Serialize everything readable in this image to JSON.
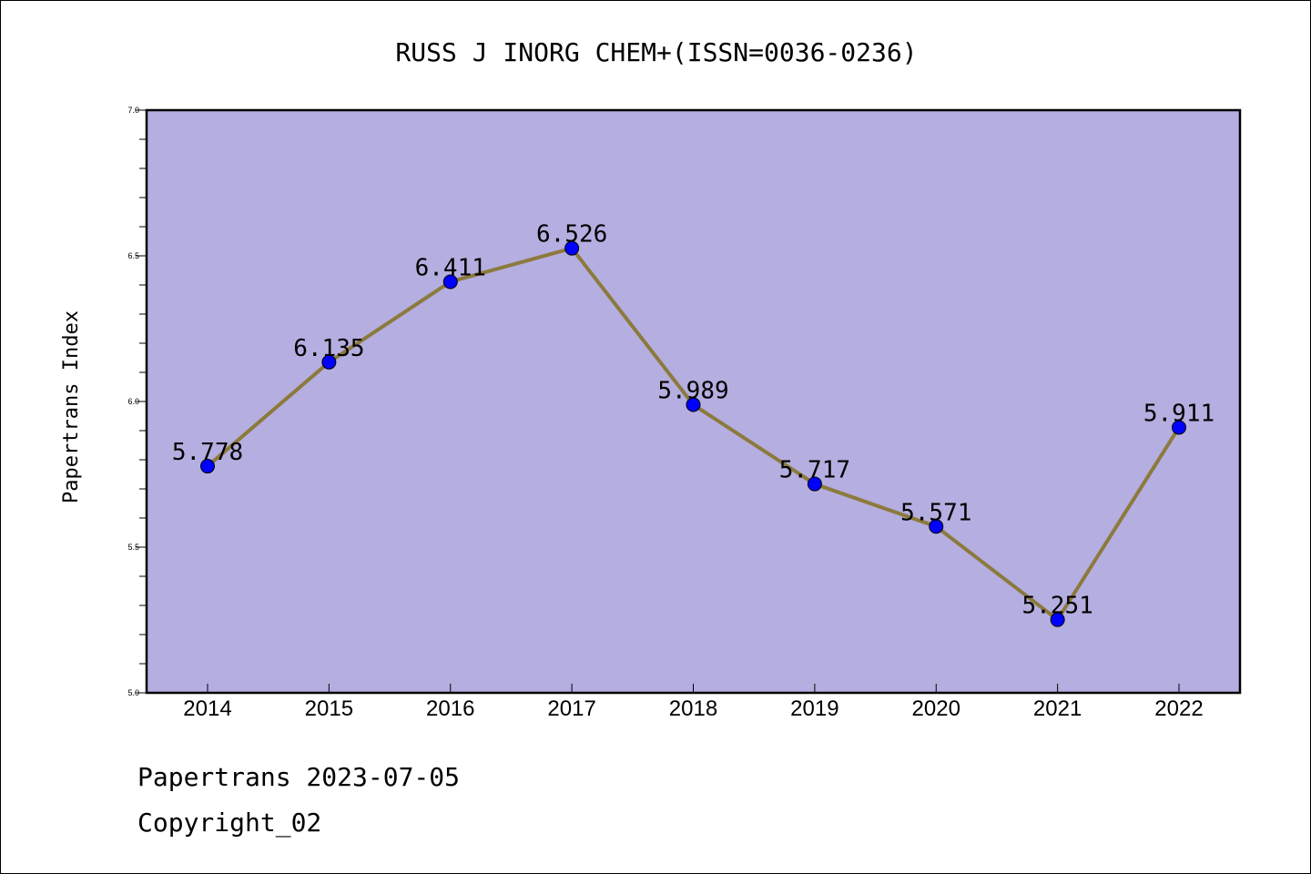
{
  "chart_data": {
    "type": "line",
    "title": "RUSS J INORG CHEM+(ISSN=0036-0236)",
    "xlabel": "",
    "ylabel": "Papertrans Index",
    "categories": [
      "2014",
      "2015",
      "2016",
      "2017",
      "2018",
      "2019",
      "2020",
      "2021",
      "2022"
    ],
    "values": [
      5.778,
      6.135,
      6.411,
      6.526,
      5.989,
      5.717,
      5.571,
      5.251,
      5.911
    ],
    "data_labels": [
      "5.778",
      "6.135",
      "6.411",
      "6.526",
      "5.989",
      "5.717",
      "5.571",
      "5.251",
      "5.911"
    ],
    "ylim": [
      5.0,
      7.0
    ],
    "yticks": [
      5.0,
      5.5,
      6.0,
      6.5,
      7.0
    ],
    "ytick_labels": [
      "5.0",
      "5.5",
      "6.0",
      "6.5",
      "7.0"
    ],
    "grid": false,
    "legend": "none",
    "colors": {
      "plot_background": "#b5aee0",
      "line": "#8b7a3c",
      "marker": "#0000ff"
    }
  },
  "footer": {
    "line1": "Papertrans 2023-07-05",
    "line2": "Copyright_02"
  }
}
